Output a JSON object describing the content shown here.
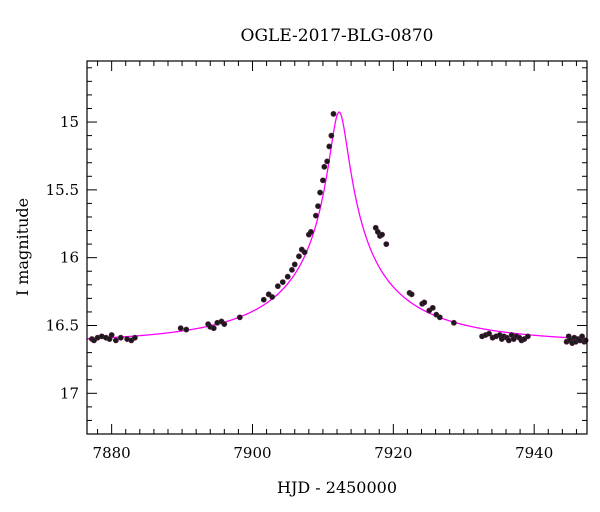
{
  "chart_data": {
    "type": "scatter",
    "title": "OGLE-2017-BLG-0870",
    "xlabel": "HJD - 2450000",
    "ylabel": "I magnitude",
    "xlim": [
      7876.5,
      7947.5
    ],
    "ylim": [
      17.3,
      14.55
    ],
    "y_inverted": true,
    "grid": false,
    "x_ticks": [
      7880,
      7900,
      7920,
      7940
    ],
    "x_tick_labels": [
      "7880",
      "7900",
      "7920",
      "7940"
    ],
    "y_ticks": [
      15,
      15.5,
      16,
      16.5,
      17
    ],
    "y_tick_labels": [
      "15",
      "15.5",
      "16",
      "16.5",
      "17"
    ],
    "x_minor_step": 2,
    "y_minor_step": 0.1,
    "colors": {
      "model": "#ff00ff",
      "points": "#1a1a1a"
    },
    "model": {
      "name": "",
      "t0": 7912.3,
      "u0": 0.05,
      "tE": 25,
      "baseline_mag": 16.63,
      "fs": 0.2
    },
    "series": [
      {
        "name": "",
        "x": [
          7877.2,
          7877.5,
          7878.0,
          7878.6,
          7879.2,
          7879.7,
          7880.0,
          7880.6,
          7881.3,
          7882.2,
          7882.8,
          7883.3,
          7889.8,
          7890.6,
          7893.7,
          7894.0,
          7894.5,
          7895.0,
          7895.6,
          7896.0,
          7898.2,
          7901.6,
          7902.3,
          7902.8,
          7903.6,
          7904.3,
          7905.0,
          7905.6,
          7906.0,
          7906.6,
          7907.0,
          7907.4,
          7908.0,
          7908.3,
          7909.0,
          7909.3,
          7909.6,
          7910.0,
          7910.2,
          7910.6,
          7910.9,
          7911.2,
          7911.5,
          7917.5,
          7917.8,
          7918.1,
          7918.4,
          7919.0,
          7922.3,
          7922.6,
          7924.1,
          7924.4,
          7925.1,
          7925.6,
          7926.1,
          7926.6,
          7928.6,
          7932.6,
          7933.1,
          7933.6,
          7934.1,
          7934.6,
          7935.1,
          7935.4,
          7935.7,
          7936.1,
          7936.4,
          7936.8,
          7937.1,
          7937.5,
          7937.9,
          7938.2,
          7938.6,
          7939.1,
          7944.6,
          7944.9,
          7945.1,
          7945.4,
          7945.7,
          7945.9,
          7946.2,
          7946.5,
          7946.8,
          7947.1,
          7947.3
        ],
        "y": [
          16.6,
          16.61,
          16.59,
          16.58,
          16.59,
          16.6,
          16.57,
          16.61,
          16.59,
          16.6,
          16.61,
          16.59,
          16.52,
          16.53,
          16.49,
          16.51,
          16.52,
          16.48,
          16.47,
          16.49,
          16.44,
          16.31,
          16.27,
          16.29,
          16.21,
          16.18,
          16.14,
          16.09,
          16.05,
          15.99,
          15.94,
          15.96,
          15.83,
          15.81,
          15.69,
          15.62,
          15.52,
          15.43,
          15.33,
          15.29,
          15.18,
          15.1,
          14.94,
          15.78,
          15.81,
          15.84,
          15.83,
          15.9,
          16.26,
          16.27,
          16.34,
          16.33,
          16.39,
          16.37,
          16.42,
          16.44,
          16.48,
          16.58,
          16.57,
          16.56,
          16.59,
          16.58,
          16.57,
          16.6,
          16.58,
          16.59,
          16.61,
          16.57,
          16.6,
          16.58,
          16.59,
          16.61,
          16.6,
          16.58,
          16.62,
          16.58,
          16.61,
          16.63,
          16.59,
          16.62,
          16.6,
          16.61,
          16.58,
          16.62,
          16.61
        ]
      }
    ]
  }
}
